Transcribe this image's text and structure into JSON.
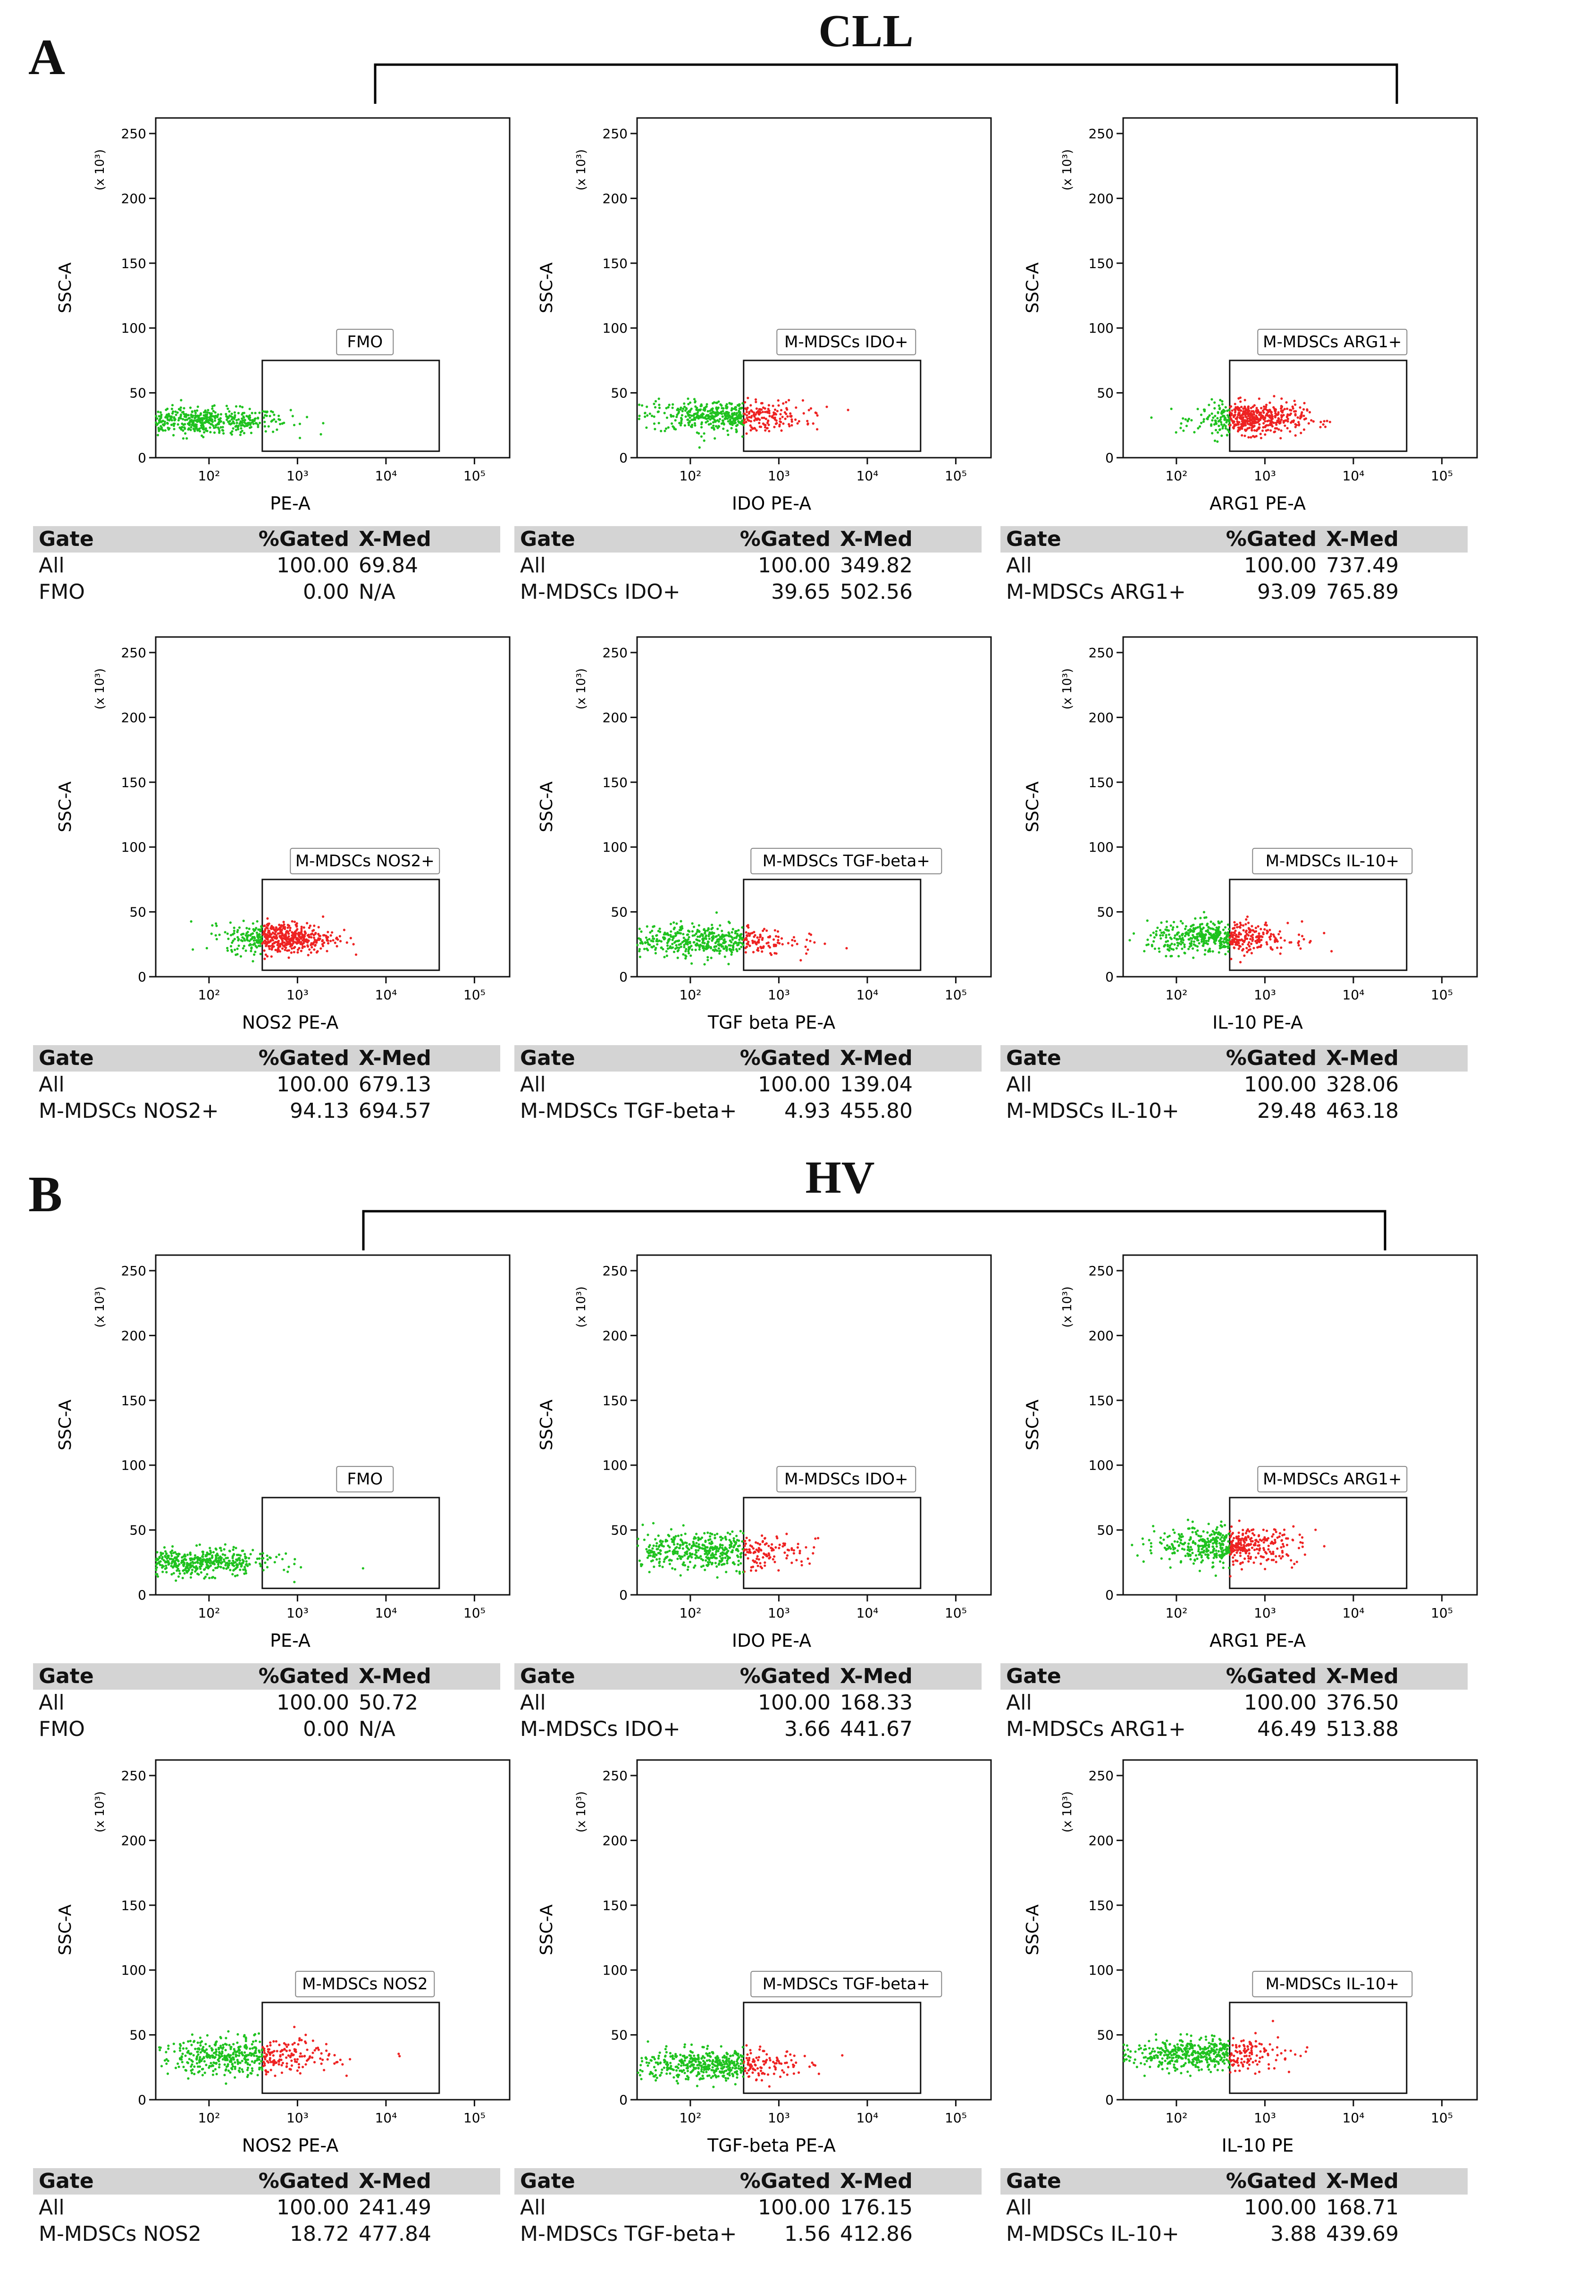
{
  "sections": [
    {
      "label": "A",
      "title": "CLL",
      "panels": [
        {
          "gate": "FMO",
          "xlabel": "PE-A",
          "color": "#1fc21f",
          "red": false,
          "cluster": {
            "x": 80,
            "y": 28,
            "sx": 0.5,
            "sy": 5
          },
          "table": {
            "header": [
              "Gate",
              "%Gated",
              "X-Med"
            ],
            "rows": [
              [
                "All",
                "100.00",
                "69.84"
              ],
              [
                "FMO",
                "0.00",
                "N/A"
              ]
            ]
          }
        },
        {
          "gate": "M-MDSCs IDO+",
          "xlabel": "IDO PE-A",
          "color": "#1fc21f",
          "red": true,
          "cluster": {
            "x": 230,
            "y": 32,
            "sx": 0.45,
            "sy": 6
          },
          "table": {
            "header": [
              "Gate",
              "%Gated",
              "X-Med"
            ],
            "rows": [
              [
                "All",
                "100.00",
                "349.82"
              ],
              [
                "M-MDSCs IDO+",
                "39.65",
                "502.56"
              ]
            ]
          }
        },
        {
          "gate": "M-MDSCs ARG1+",
          "xlabel": "ARG1 PE-A",
          "color": "#1fc21f",
          "red": true,
          "cluster": {
            "x": 700,
            "y": 30,
            "sx": 0.3,
            "sy": 6
          },
          "table": {
            "header": [
              "Gate",
              "%Gated",
              "X-Med"
            ],
            "rows": [
              [
                "All",
                "100.00",
                "737.49"
              ],
              [
                "M-MDSCs ARG1+",
                "93.09",
                "765.89"
              ]
            ]
          }
        },
        {
          "gate": "M-MDSCs NOS2+",
          "xlabel": "NOS2 PE-A",
          "color": "#1fc21f",
          "red": true,
          "cluster": {
            "x": 650,
            "y": 30,
            "sx": 0.3,
            "sy": 6
          },
          "table": {
            "header": [
              "Gate",
              "%Gated",
              "X-Med"
            ],
            "rows": [
              [
                "All",
                "100.00",
                "679.13"
              ],
              [
                "M-MDSCs NOS2+",
                "94.13",
                "694.57"
              ]
            ]
          }
        },
        {
          "gate": "M-MDSCs TGF-beta+",
          "xlabel": "TGF beta PE-A",
          "color": "#1fc21f",
          "red": true,
          "cluster": {
            "x": 130,
            "y": 28,
            "sx": 0.5,
            "sy": 6
          },
          "table": {
            "header": [
              "Gate",
              "%Gated",
              "X-Med"
            ],
            "rows": [
              [
                "All",
                "100.00",
                "139.04"
              ],
              [
                "M-MDSCs TGF-beta+",
                "4.93",
                "455.80"
              ]
            ]
          }
        },
        {
          "gate": "M-MDSCs IL-10+",
          "xlabel": "IL-10 PE-A",
          "color": "#1fc21f",
          "red": true,
          "cluster": {
            "x": 300,
            "y": 30,
            "sx": 0.4,
            "sy": 6
          },
          "table": {
            "header": [
              "Gate",
              "%Gated",
              "X-Med"
            ],
            "rows": [
              [
                "All",
                "100.00",
                "328.06"
              ],
              [
                "M-MDSCs IL-10+",
                "29.48",
                "463.18"
              ]
            ]
          }
        }
      ]
    },
    {
      "label": "B",
      "title": "HV",
      "panels": [
        {
          "gate": "FMO",
          "xlabel": "PE-A",
          "color": "#1fc21f",
          "red": false,
          "cluster": {
            "x": 65,
            "y": 25,
            "sx": 0.45,
            "sy": 5
          },
          "table": {
            "header": [
              "Gate",
              "%Gated",
              "X-Med"
            ],
            "rows": [
              [
                "All",
                "100.00",
                "50.72"
              ],
              [
                "FMO",
                "0.00",
                "N/A"
              ]
            ]
          }
        },
        {
          "gate": "M-MDSCs IDO+",
          "xlabel": "IDO PE-A",
          "color": "#1fc21f",
          "red": true,
          "cluster": {
            "x": 160,
            "y": 34,
            "sx": 0.5,
            "sy": 7
          },
          "table": {
            "header": [
              "Gate",
              "%Gated",
              "X-Med"
            ],
            "rows": [
              [
                "All",
                "100.00",
                "168.33"
              ],
              [
                "M-MDSCs IDO+",
                "3.66",
                "441.67"
              ]
            ]
          }
        },
        {
          "gate": "M-MDSCs ARG1+",
          "xlabel": "ARG1 PE-A",
          "color": "#1fc21f",
          "red": true,
          "cluster": {
            "x": 380,
            "y": 38,
            "sx": 0.4,
            "sy": 7
          },
          "table": {
            "header": [
              "Gate",
              "%Gated",
              "X-Med"
            ],
            "rows": [
              [
                "All",
                "100.00",
                "376.50"
              ],
              [
                "M-MDSCs ARG1+",
                "46.49",
                "513.88"
              ]
            ]
          }
        },
        {
          "gate": "M-MDSCs NOS2",
          "xlabel": "NOS2 PE-A",
          "color": "#1fc21f",
          "red": true,
          "cluster": {
            "x": 230,
            "y": 33,
            "sx": 0.5,
            "sy": 7
          },
          "table": {
            "header": [
              "Gate",
              "%Gated",
              "X-Med"
            ],
            "rows": [
              [
                "All",
                "100.00",
                "241.49"
              ],
              [
                "M-MDSCs NOS2",
                "18.72",
                "477.84"
              ]
            ]
          }
        },
        {
          "gate": "M-MDSCs TGF-beta+",
          "xlabel": "TGF-beta PE-A",
          "color": "#1fc21f",
          "red": true,
          "cluster": {
            "x": 170,
            "y": 27,
            "sx": 0.45,
            "sy": 6
          },
          "table": {
            "header": [
              "Gate",
              "%Gated",
              "X-Med"
            ],
            "rows": [
              [
                "All",
                "100.00",
                "176.15"
              ],
              [
                "M-MDSCs TGF-beta+",
                "1.56",
                "412.86"
              ]
            ]
          }
        },
        {
          "gate": "M-MDSCs IL-10+",
          "xlabel": "IL-10 PE",
          "color": "#1fc21f",
          "red": true,
          "cluster": {
            "x": 170,
            "y": 35,
            "sx": 0.45,
            "sy": 6
          },
          "table": {
            "header": [
              "Gate",
              "%Gated",
              "X-Med"
            ],
            "rows": [
              [
                "All",
                "100.00",
                "168.71"
              ],
              [
                "M-MDSCs IL-10+",
                "3.88",
                "439.69"
              ]
            ]
          }
        }
      ]
    }
  ],
  "chart_data": {
    "type": "scatter",
    "ylabel": "SSC-A",
    "yunit": "(x 10³)",
    "yticks": [
      0,
      50,
      100,
      150,
      200,
      250
    ],
    "xticks": [
      "10²",
      "10³",
      "10⁴",
      "10⁵"
    ],
    "ylim": [
      0,
      262
    ],
    "xscale": "log",
    "gate_x_range": [
      400,
      40000
    ],
    "gate_y_range": [
      5,
      75
    ]
  }
}
